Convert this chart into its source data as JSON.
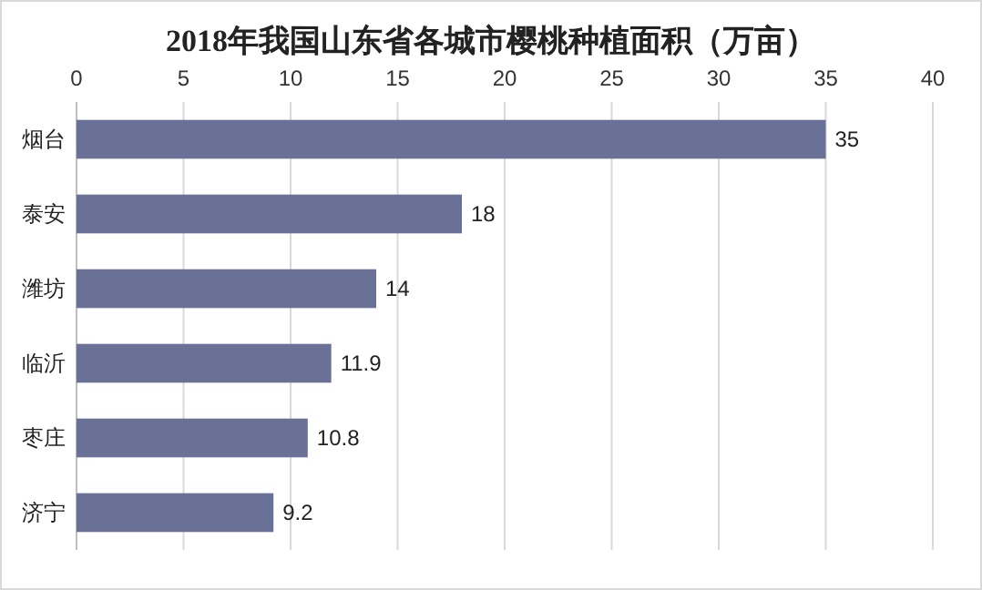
{
  "chart_data": {
    "type": "bar",
    "orientation": "horizontal",
    "title": "2018年我国山东省各城市樱桃种植面积（万亩）",
    "categories": [
      "烟台",
      "泰安",
      "潍坊",
      "临沂",
      "枣庄",
      "济宁"
    ],
    "values": [
      35,
      18,
      14,
      11.9,
      10.8,
      9.2
    ],
    "color": "#6a7196",
    "xlim": [
      0,
      40
    ],
    "xticks": [
      0,
      5,
      10,
      15,
      20,
      25,
      30,
      35,
      40
    ],
    "grid": "x",
    "data_labels": true
  }
}
